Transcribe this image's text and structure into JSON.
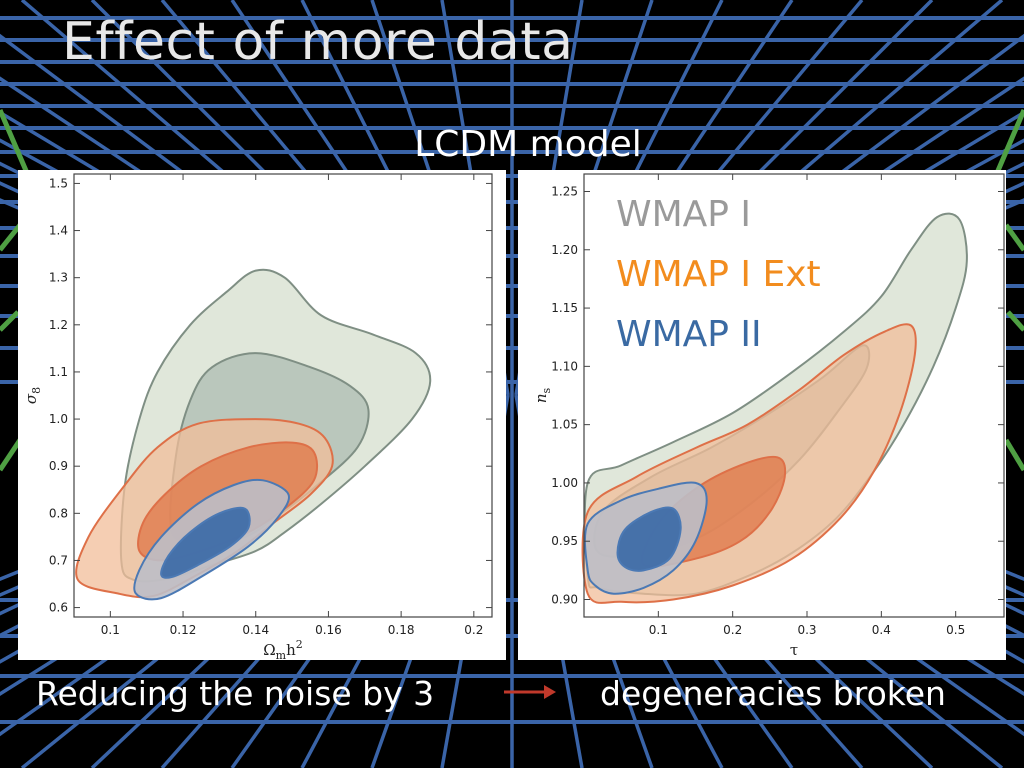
{
  "slide": {
    "title": "Effect of more data",
    "subtitle": "LCDM model",
    "footer_left": "Reducing the noise by 3",
    "footer_right": "degeneracies broken"
  },
  "colors": {
    "background": "#000000",
    "grid_blue": "#3a64a8",
    "grid_green": "#4fa043",
    "wmap1_fill": "#dbe3d3",
    "wmap1_inner": "#aebcb2",
    "wmap1_edge": "#7f8f84",
    "ext_fill": "#f2bd9a",
    "ext_inner": "#e07a4c",
    "ext_edge": "#de7048",
    "wmap2_fill": "#bdbec6",
    "wmap2_inner": "#3f6da8",
    "wmap2_edge": "#4b79b4",
    "arrow": "#c0392b"
  },
  "chart_data": [
    {
      "type": "contour",
      "xlabel": "Ωmh2",
      "ylabel": "σ8",
      "xlim": [
        0.09,
        0.205
      ],
      "ylim": [
        0.58,
        1.52
      ],
      "xticks": [
        0.1,
        0.12,
        0.14,
        0.16,
        0.18,
        0.2
      ],
      "xtick_labels": [
        "0.1",
        "0.12",
        "0.14",
        "0.16",
        "0.18",
        "0.2"
      ],
      "yticks": [
        0.6,
        0.7,
        0.8,
        0.9,
        1.0,
        1.1,
        1.2,
        1.3,
        1.4,
        1.5
      ],
      "ytick_labels": [
        "0.6",
        "0.7",
        "0.8",
        "0.9",
        "1.0",
        "1.1",
        "1.2",
        "1.3",
        "1.4",
        "1.5"
      ],
      "series": [
        {
          "name": "WMAP I",
          "level": 2,
          "points": [
            [
              0.103,
              0.7
            ],
            [
              0.104,
              0.86
            ],
            [
              0.108,
              1.0
            ],
            [
              0.113,
              1.1
            ],
            [
              0.122,
              1.2
            ],
            [
              0.132,
              1.27
            ],
            [
              0.14,
              1.315
            ],
            [
              0.148,
              1.3
            ],
            [
              0.158,
              1.22
            ],
            [
              0.172,
              1.18
            ],
            [
              0.184,
              1.14
            ],
            [
              0.188,
              1.08
            ],
            [
              0.183,
              1.0
            ],
            [
              0.17,
              0.9
            ],
            [
              0.158,
              0.82
            ],
            [
              0.148,
              0.76
            ],
            [
              0.14,
              0.72
            ],
            [
              0.128,
              0.69
            ],
            [
              0.115,
              0.66
            ],
            [
              0.106,
              0.66
            ]
          ]
        },
        {
          "name": "WMAP I",
          "level": 1,
          "points": [
            [
              0.117,
              0.76
            ],
            [
              0.118,
              0.92
            ],
            [
              0.122,
              1.04
            ],
            [
              0.128,
              1.11
            ],
            [
              0.14,
              1.14
            ],
            [
              0.155,
              1.11
            ],
            [
              0.166,
              1.07
            ],
            [
              0.171,
              1.02
            ],
            [
              0.168,
              0.94
            ],
            [
              0.157,
              0.86
            ],
            [
              0.147,
              0.8
            ],
            [
              0.137,
              0.75
            ],
            [
              0.126,
              0.74
            ]
          ]
        },
        {
          "name": "WMAP I Ext",
          "level": 2,
          "points": [
            [
              0.091,
              0.66
            ],
            [
              0.094,
              0.75
            ],
            [
              0.104,
              0.86
            ],
            [
              0.113,
              0.94
            ],
            [
              0.124,
              0.99
            ],
            [
              0.14,
              1.0
            ],
            [
              0.152,
              0.99
            ],
            [
              0.159,
              0.96
            ],
            [
              0.161,
              0.9
            ],
            [
              0.155,
              0.84
            ],
            [
              0.145,
              0.78
            ],
            [
              0.135,
              0.72
            ],
            [
              0.124,
              0.67
            ],
            [
              0.112,
              0.625
            ],
            [
              0.102,
              0.63
            ]
          ]
        },
        {
          "name": "WMAP I Ext",
          "level": 1,
          "points": [
            [
              0.108,
              0.72
            ],
            [
              0.109,
              0.78
            ],
            [
              0.115,
              0.84
            ],
            [
              0.125,
              0.9
            ],
            [
              0.138,
              0.94
            ],
            [
              0.15,
              0.95
            ],
            [
              0.156,
              0.93
            ],
            [
              0.156,
              0.87
            ],
            [
              0.148,
              0.81
            ],
            [
              0.138,
              0.76
            ],
            [
              0.125,
              0.72
            ],
            [
              0.114,
              0.7
            ]
          ]
        },
        {
          "name": "WMAP II",
          "level": 2,
          "points": [
            [
              0.107,
              0.63
            ],
            [
              0.108,
              0.68
            ],
            [
              0.114,
              0.75
            ],
            [
              0.124,
              0.82
            ],
            [
              0.134,
              0.86
            ],
            [
              0.142,
              0.87
            ],
            [
              0.149,
              0.84
            ],
            [
              0.146,
              0.79
            ],
            [
              0.138,
              0.73
            ],
            [
              0.126,
              0.67
            ],
            [
              0.114,
              0.62
            ]
          ]
        },
        {
          "name": "WMAP II",
          "level": 1,
          "points": [
            [
              0.114,
              0.67
            ],
            [
              0.116,
              0.71
            ],
            [
              0.122,
              0.76
            ],
            [
              0.13,
              0.8
            ],
            [
              0.137,
              0.81
            ],
            [
              0.138,
              0.77
            ],
            [
              0.133,
              0.73
            ],
            [
              0.124,
              0.69
            ],
            [
              0.117,
              0.665
            ]
          ]
        }
      ]
    },
    {
      "type": "contour",
      "xlabel": "τ",
      "ylabel": "ns",
      "xlim": [
        0.0,
        0.565
      ],
      "ylim": [
        0.885,
        1.265
      ],
      "xticks": [
        0.1,
        0.2,
        0.3,
        0.4,
        0.5
      ],
      "xtick_labels": [
        "0.1",
        "0.2",
        "0.3",
        "0.4",
        "0.5"
      ],
      "yticks": [
        0.9,
        0.95,
        1.0,
        1.05,
        1.1,
        1.15,
        1.2,
        1.25
      ],
      "ytick_labels": [
        "0.90",
        "0.95",
        "1.00",
        "1.05",
        "1.10",
        "1.15",
        "1.20",
        "1.25"
      ],
      "legend": [
        {
          "label": "WMAP I",
          "color": "#9a9a9a"
        },
        {
          "label": "WMAP I Ext",
          "color": "#f28c1e"
        },
        {
          "label": "WMAP II",
          "color": "#3a6aa3"
        }
      ],
      "series": [
        {
          "name": "WMAP I",
          "level": 2,
          "points": [
            [
              0.005,
              0.92
            ],
            [
              0.005,
              1.0
            ],
            [
              0.05,
              1.015
            ],
            [
              0.12,
              1.035
            ],
            [
              0.2,
              1.06
            ],
            [
              0.28,
              1.095
            ],
            [
              0.35,
              1.13
            ],
            [
              0.4,
              1.16
            ],
            [
              0.44,
              1.2
            ],
            [
              0.475,
              1.228
            ],
            [
              0.505,
              1.226
            ],
            [
              0.515,
              1.19
            ],
            [
              0.5,
              1.15
            ],
            [
              0.47,
              1.1
            ],
            [
              0.43,
              1.05
            ],
            [
              0.39,
              1.01
            ],
            [
              0.34,
              0.97
            ],
            [
              0.28,
              0.94
            ],
            [
              0.22,
              0.92
            ],
            [
              0.15,
              0.905
            ],
            [
              0.08,
              0.905
            ],
            [
              0.02,
              0.91
            ]
          ]
        },
        {
          "name": "WMAP I",
          "level": 1,
          "points": [
            [
              0.02,
              0.94
            ],
            [
              0.025,
              0.975
            ],
            [
              0.09,
              1.005
            ],
            [
              0.17,
              1.03
            ],
            [
              0.25,
              1.06
            ],
            [
              0.32,
              1.09
            ],
            [
              0.375,
              1.118
            ],
            [
              0.38,
              1.098
            ],
            [
              0.34,
              1.06
            ],
            [
              0.29,
              1.02
            ],
            [
              0.23,
              0.985
            ],
            [
              0.16,
              0.955
            ],
            [
              0.09,
              0.94
            ]
          ]
        },
        {
          "name": "WMAP I Ext",
          "level": 2,
          "points": [
            [
              0.005,
              0.905
            ],
            [
              0.005,
              0.975
            ],
            [
              0.07,
              1.005
            ],
            [
              0.15,
              1.03
            ],
            [
              0.22,
              1.05
            ],
            [
              0.29,
              1.08
            ],
            [
              0.35,
              1.11
            ],
            [
              0.405,
              1.13
            ],
            [
              0.44,
              1.135
            ],
            [
              0.445,
              1.11
            ],
            [
              0.425,
              1.06
            ],
            [
              0.39,
              1.01
            ],
            [
              0.345,
              0.97
            ],
            [
              0.28,
              0.935
            ],
            [
              0.2,
              0.912
            ],
            [
              0.12,
              0.9
            ],
            [
              0.05,
              0.898
            ]
          ]
        },
        {
          "name": "WMAP I Ext",
          "level": 1,
          "points": [
            [
              0.08,
              0.93
            ],
            [
              0.1,
              0.965
            ],
            [
              0.15,
              0.995
            ],
            [
              0.21,
              1.015
            ],
            [
              0.26,
              1.022
            ],
            [
              0.27,
              1.005
            ],
            [
              0.25,
              0.975
            ],
            [
              0.21,
              0.95
            ],
            [
              0.15,
              0.935
            ]
          ]
        },
        {
          "name": "WMAP II",
          "level": 2,
          "points": [
            [
              0.005,
              0.925
            ],
            [
              0.005,
              0.965
            ],
            [
              0.05,
              0.985
            ],
            [
              0.1,
              0.995
            ],
            [
              0.15,
              1.0
            ],
            [
              0.165,
              0.985
            ],
            [
              0.15,
              0.95
            ],
            [
              0.12,
              0.925
            ],
            [
              0.08,
              0.91
            ],
            [
              0.04,
              0.905
            ],
            [
              0.015,
              0.912
            ]
          ]
        },
        {
          "name": "WMAP II",
          "level": 1,
          "points": [
            [
              0.045,
              0.94
            ],
            [
              0.055,
              0.96
            ],
            [
              0.09,
              0.975
            ],
            [
              0.12,
              0.978
            ],
            [
              0.13,
              0.96
            ],
            [
              0.115,
              0.935
            ],
            [
              0.08,
              0.925
            ],
            [
              0.055,
              0.928
            ]
          ]
        }
      ]
    }
  ]
}
